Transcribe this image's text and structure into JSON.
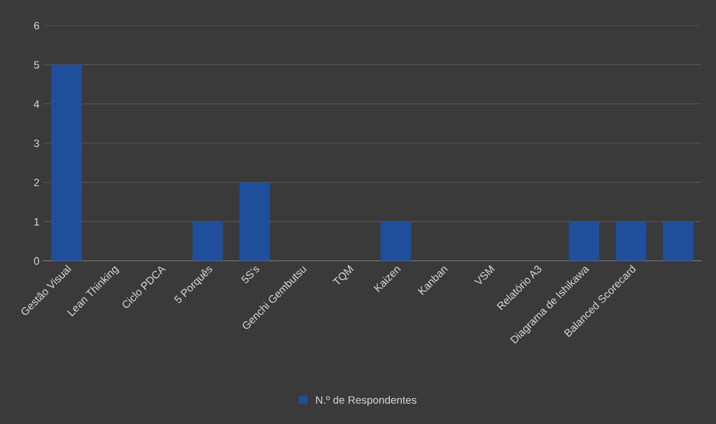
{
  "chart_data": {
    "type": "bar",
    "categories": [
      "Gestão Visual",
      "Lean Thinking",
      "Ciclo PDCA",
      "5 Porquês",
      "5S's",
      "Genchi Gembutsu",
      "TQM",
      "Kaizen",
      "Kanban",
      "VSM",
      "Relatório A3",
      "Diagrama de Ishikawa",
      "Balanced Scorecard",
      null
    ],
    "series": [
      {
        "name": "N.º de Respondentes",
        "color": "#1f4e9a",
        "values": [
          5,
          0,
          0,
          1,
          2,
          0,
          0,
          1,
          0,
          0,
          0,
          1,
          1,
          1
        ]
      }
    ],
    "ylim": [
      0,
      6
    ],
    "yticks": [
      0,
      1,
      2,
      3,
      4,
      5,
      6
    ],
    "grid": "y",
    "legend": "bottom"
  }
}
